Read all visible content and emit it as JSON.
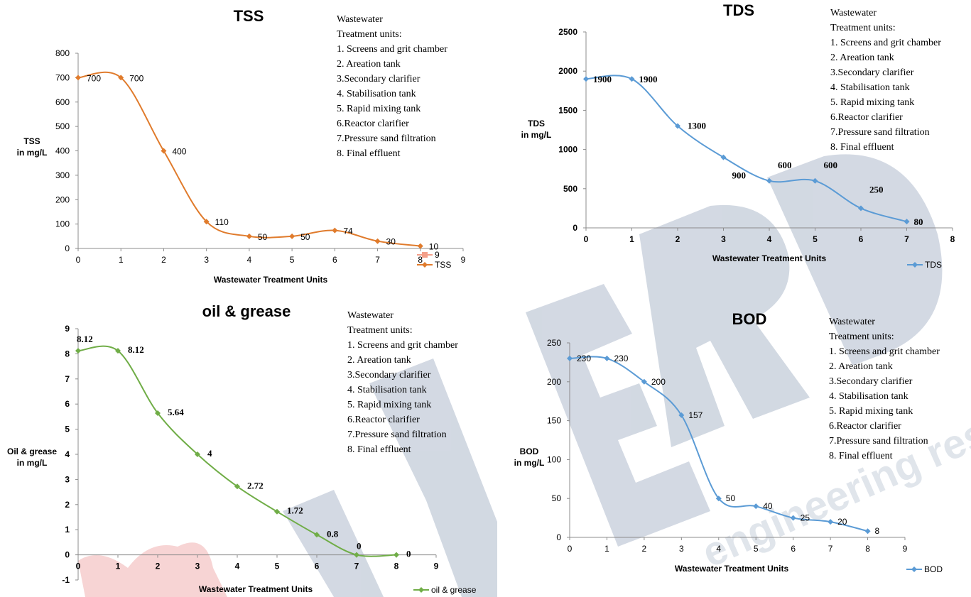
{
  "watermark": {
    "text": "IJERD",
    "sub": "engineering research",
    "color": "#c8d0dc"
  },
  "chart_data": [
    {
      "id": "tss",
      "type": "line",
      "title": "TSS",
      "xlabel": "Wastewater Treatment Units",
      "ylabel": [
        "TSS",
        "in mg/L"
      ],
      "xlim": [
        0,
        9
      ],
      "ylim": [
        0,
        800
      ],
      "ystep": 100,
      "xticks": [
        0,
        1,
        2,
        3,
        4,
        5,
        6,
        7,
        8,
        9
      ],
      "color": "#e07b2c",
      "x": [
        0,
        1,
        2,
        3,
        4,
        5,
        6,
        7,
        8
      ],
      "values": [
        700,
        700,
        400,
        110,
        50,
        50,
        74,
        30,
        10
      ],
      "labels": [
        "700",
        "700",
        "400",
        "110",
        "50",
        "50",
        "74",
        "30",
        "10"
      ],
      "legend": [
        {
          "name": "9",
          "color": "#f4a08a",
          "marker": "square"
        },
        {
          "name": "TSS",
          "color": "#e07b2c",
          "marker": "diamond"
        }
      ],
      "notes_title": [
        "Wastewater",
        "Treatment units:"
      ],
      "notes": [
        "1. Screens and grit chamber",
        "2. Areation tank",
        "3.Secondary clarifier",
        "4. Stabilisation tank",
        "5. Rapid mixing tank",
        "6.Reactor clarifier",
        "7.Pressure sand filtration",
        "8. Final effluent"
      ]
    },
    {
      "id": "tds",
      "type": "line",
      "title": "TDS",
      "xlabel": "Wastewater Treatment Units",
      "ylabel": [
        "TDS",
        "in mg/L"
      ],
      "xlim": [
        0,
        8
      ],
      "ylim": [
        0,
        2500
      ],
      "ystep": 500,
      "xticks": [
        0,
        1,
        2,
        3,
        4,
        5,
        6,
        7,
        8
      ],
      "color": "#5b9bd5",
      "x": [
        0,
        1,
        2,
        3,
        4,
        5,
        6,
        7
      ],
      "values": [
        1900,
        1900,
        1300,
        900,
        600,
        600,
        250,
        80
      ],
      "labels": [
        "1900",
        "1900",
        "1300",
        "900",
        "600",
        "600",
        "250",
        "80"
      ],
      "legend": [
        {
          "name": "TDS",
          "color": "#5b9bd5",
          "marker": "diamond"
        }
      ],
      "notes_title": [
        "Wastewater",
        "Treatment units:"
      ],
      "notes": [
        "1. Screens and grit chamber",
        "2. Areation tank",
        "3.Secondary clarifier",
        "4. Stabilisation tank",
        "5. Rapid mixing tank",
        "6.Reactor clarifier",
        "7.Pressure sand filtration",
        "8. Final effluent"
      ]
    },
    {
      "id": "oil",
      "type": "line",
      "title": "oil & grease",
      "xlabel": "Wastewater Treatment Units",
      "ylabel": [
        "Oil & grease",
        "in mg/L"
      ],
      "xlim": [
        0,
        9
      ],
      "ylim": [
        -1,
        9
      ],
      "ystep": 1,
      "xticks": [
        0,
        1,
        2,
        3,
        4,
        5,
        6,
        7,
        8,
        9
      ],
      "color": "#70ad47",
      "x": [
        0,
        1,
        2,
        3,
        4,
        5,
        6,
        7,
        8
      ],
      "values": [
        8.12,
        8.12,
        5.64,
        4,
        2.72,
        1.72,
        0.8,
        0,
        0
      ],
      "labels": [
        "8.12",
        "8.12",
        "5.64",
        "4",
        "2.72",
        "1.72",
        "0.8",
        "0",
        "0"
      ],
      "legend": [
        {
          "name": "oil & grease",
          "color": "#70ad47",
          "marker": "diamond"
        }
      ],
      "notes_title": [
        "Wastewater",
        "Treatment units:"
      ],
      "notes": [
        "1. Screens and grit chamber",
        "2. Areation tank",
        "3.Secondary clarifier",
        "4. Stabilisation tank",
        "5. Rapid mixing tank",
        "6.Reactor clarifier",
        "7.Pressure sand filtration",
        "8. Final effluent"
      ]
    },
    {
      "id": "bod",
      "type": "line",
      "title": "BOD",
      "xlabel": "Wastewater Treatment Units",
      "ylabel": [
        "BOD",
        "in mg/L"
      ],
      "xlim": [
        0,
        9
      ],
      "ylim": [
        0,
        250
      ],
      "ystep": 50,
      "xticks": [
        0,
        1,
        2,
        3,
        4,
        5,
        6,
        7,
        8,
        9
      ],
      "color": "#5b9bd5",
      "x": [
        0,
        1,
        2,
        3,
        4,
        5,
        6,
        7,
        8
      ],
      "values": [
        230,
        230,
        200,
        157,
        50,
        40,
        25,
        20,
        8
      ],
      "labels": [
        "230",
        "230",
        "200",
        "157",
        "50",
        "40",
        "25",
        "20",
        "8"
      ],
      "legend": [
        {
          "name": "BOD",
          "color": "#5b9bd5",
          "marker": "diamond"
        }
      ],
      "notes_title": [
        "Wastewater",
        "Treatment units:"
      ],
      "notes": [
        "1. Screens and grit chamber",
        "2. Areation tank",
        "3.Secondary clarifier",
        "4. Stabilisation tank",
        "5. Rapid mixing tank",
        "6.Reactor clarifier",
        "7.Pressure sand filtration",
        "8. Final effluent"
      ]
    }
  ]
}
